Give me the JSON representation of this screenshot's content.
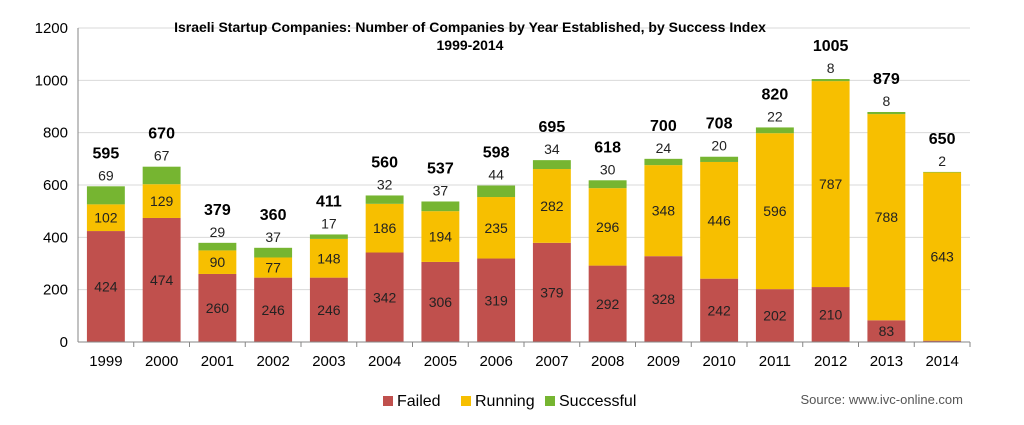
{
  "chart_data": {
    "type": "bar",
    "stacked": true,
    "title": "Israeli Startup Companies: Number of Companies by Year Established, by Success Index",
    "subtitle": "1999-2014",
    "categories": [
      "1999",
      "2000",
      "2001",
      "2002",
      "2003",
      "2004",
      "2005",
      "2006",
      "2007",
      "2008",
      "2009",
      "2010",
      "2011",
      "2012",
      "2013",
      "2014"
    ],
    "series": [
      {
        "name": "Failed",
        "color": "#c0504d",
        "values": [
          424,
          474,
          260,
          246,
          246,
          342,
          306,
          319,
          379,
          292,
          328,
          242,
          202,
          210,
          83,
          5
        ]
      },
      {
        "name": "Running",
        "color": "#f7bf00",
        "values": [
          102,
          129,
          90,
          77,
          148,
          186,
          194,
          235,
          282,
          296,
          348,
          446,
          596,
          787,
          788,
          643
        ]
      },
      {
        "name": "Successful",
        "color": "#76b531",
        "values": [
          69,
          67,
          29,
          37,
          17,
          32,
          37,
          44,
          34,
          30,
          24,
          20,
          22,
          8,
          8,
          2
        ]
      }
    ],
    "totals": [
      595,
      670,
      379,
      360,
      411,
      560,
      537,
      598,
      695,
      618,
      700,
      708,
      820,
      1005,
      879,
      650
    ],
    "ylim": [
      0,
      1200
    ],
    "yticks": [
      0,
      200,
      400,
      600,
      800,
      1000,
      1200
    ],
    "grid": true,
    "legend_position": "bottom",
    "source": "Source: www.ivc-online.com"
  }
}
